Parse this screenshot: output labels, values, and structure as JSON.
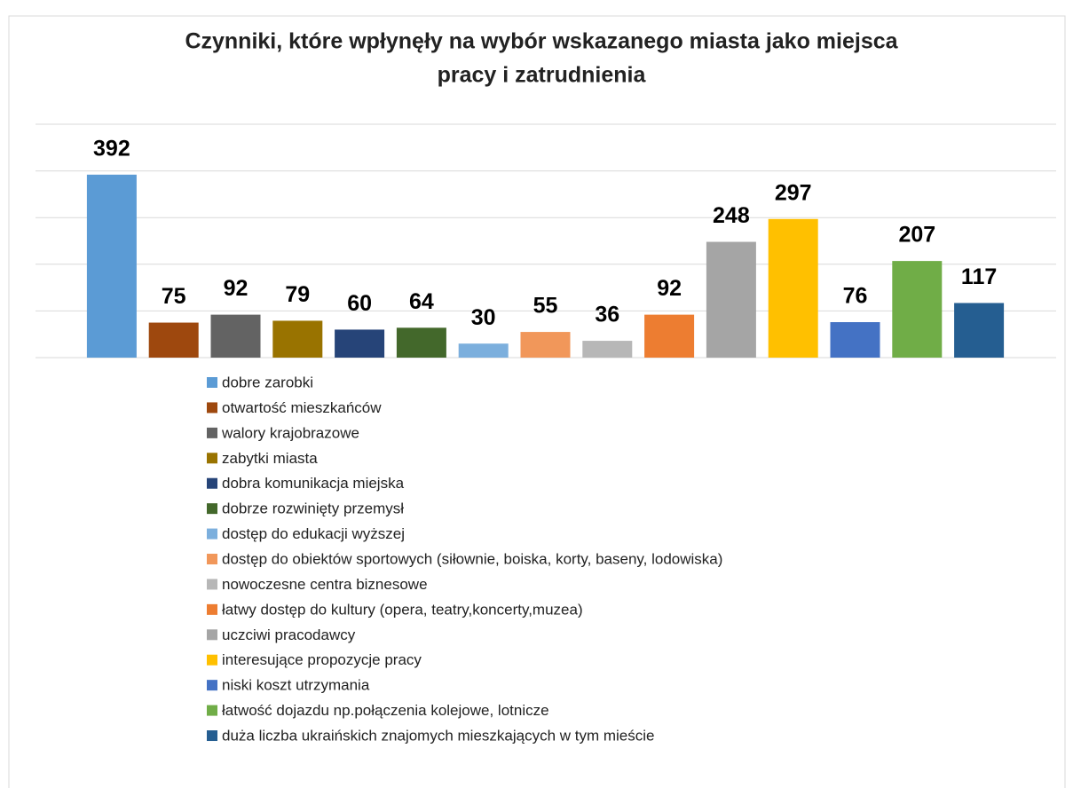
{
  "chart_data": {
    "type": "bar",
    "title": [
      "Czynniki, które wpłynęły na wybór wskazanego miasta jako miejsca",
      "pracy i zatrudnienia"
    ],
    "categories": [
      "dobre zarobki",
      "otwartość mieszkańców",
      "walory krajobrazowe",
      "zabytki miasta",
      "dobra komunikacja miejska",
      "dobrze rozwinięty przemysł",
      "dostęp do edukacji wyższej",
      "dostęp do obiektów sportowych (siłownie, boiska, korty, baseny, lodowiska)",
      "nowoczesne centra biznesowe",
      "łatwy dostęp do kultury (opera, teatry,koncerty,muzea)",
      "uczciwi pracodawcy",
      "interesujące propozycje pracy",
      "niski koszt utrzymania",
      "łatwość dojazdu np.połączenia kolejowe, lotnicze",
      "duża liczba ukraińskich znajomych mieszkających w tym mieście"
    ],
    "values": [
      392,
      75,
      92,
      79,
      60,
      64,
      30,
      55,
      36,
      92,
      248,
      297,
      76,
      207,
      117
    ],
    "colors": [
      "#5b9bd5",
      "#9e480e",
      "#636363",
      "#997300",
      "#264478",
      "#43682b",
      "#7cafdd",
      "#f1975a",
      "#b7b7b7",
      "#ed7d31",
      "#a5a5a5",
      "#ffc000",
      "#4472c4",
      "#70ad47",
      "#255e91"
    ],
    "ylim": [
      0,
      500
    ],
    "yticks": [
      0,
      100,
      200,
      300,
      400,
      500
    ],
    "grid": true,
    "legend": "bottom"
  }
}
